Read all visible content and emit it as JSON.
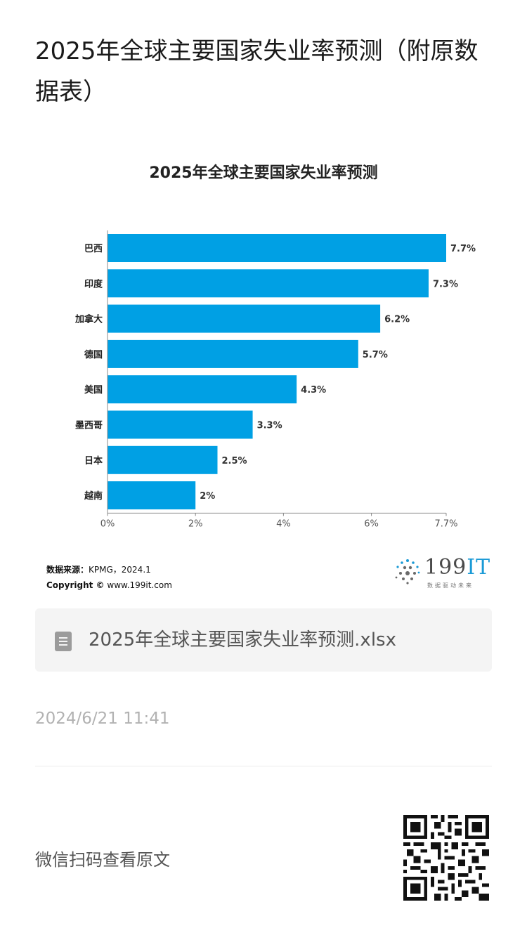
{
  "article": {
    "title": "2025年全球主要国家失业率预测（附原数据表）"
  },
  "chart_data": {
    "type": "bar",
    "orientation": "horizontal",
    "title": "2025年全球主要国家失业率预测",
    "categories": [
      "巴西",
      "印度",
      "加拿大",
      "德国",
      "美国",
      "墨西哥",
      "日本",
      "越南"
    ],
    "values": [
      7.7,
      7.3,
      6.2,
      5.7,
      4.3,
      3.3,
      2.5,
      2
    ],
    "value_labels": [
      "7.7%",
      "7.3%",
      "6.2%",
      "5.7%",
      "4.3%",
      "3.3%",
      "2.5%",
      "2%"
    ],
    "x_ticks": [
      0,
      2,
      4,
      6,
      7.7
    ],
    "x_tick_labels": [
      "0%",
      "2%",
      "4%",
      "6%",
      "7.7%"
    ],
    "xlim": [
      0,
      7.7
    ],
    "bar_color": "#00a0e4",
    "grid": false
  },
  "source": {
    "label": "数据来源：",
    "value": "KPMG，2024.1",
    "copyright_label": "Copyright ©",
    "copyright_value": "www.199it.com"
  },
  "logo": {
    "text_main": "199",
    "text_accent": "IT",
    "subtitle": "数据驱动未来"
  },
  "attachment": {
    "icon": "spreadsheet-file-icon",
    "filename": "2025年全球主要国家失业率预测.xlsx"
  },
  "meta": {
    "timestamp": "2024/6/21 11:41",
    "scan_prompt": "微信扫码查看原文"
  }
}
